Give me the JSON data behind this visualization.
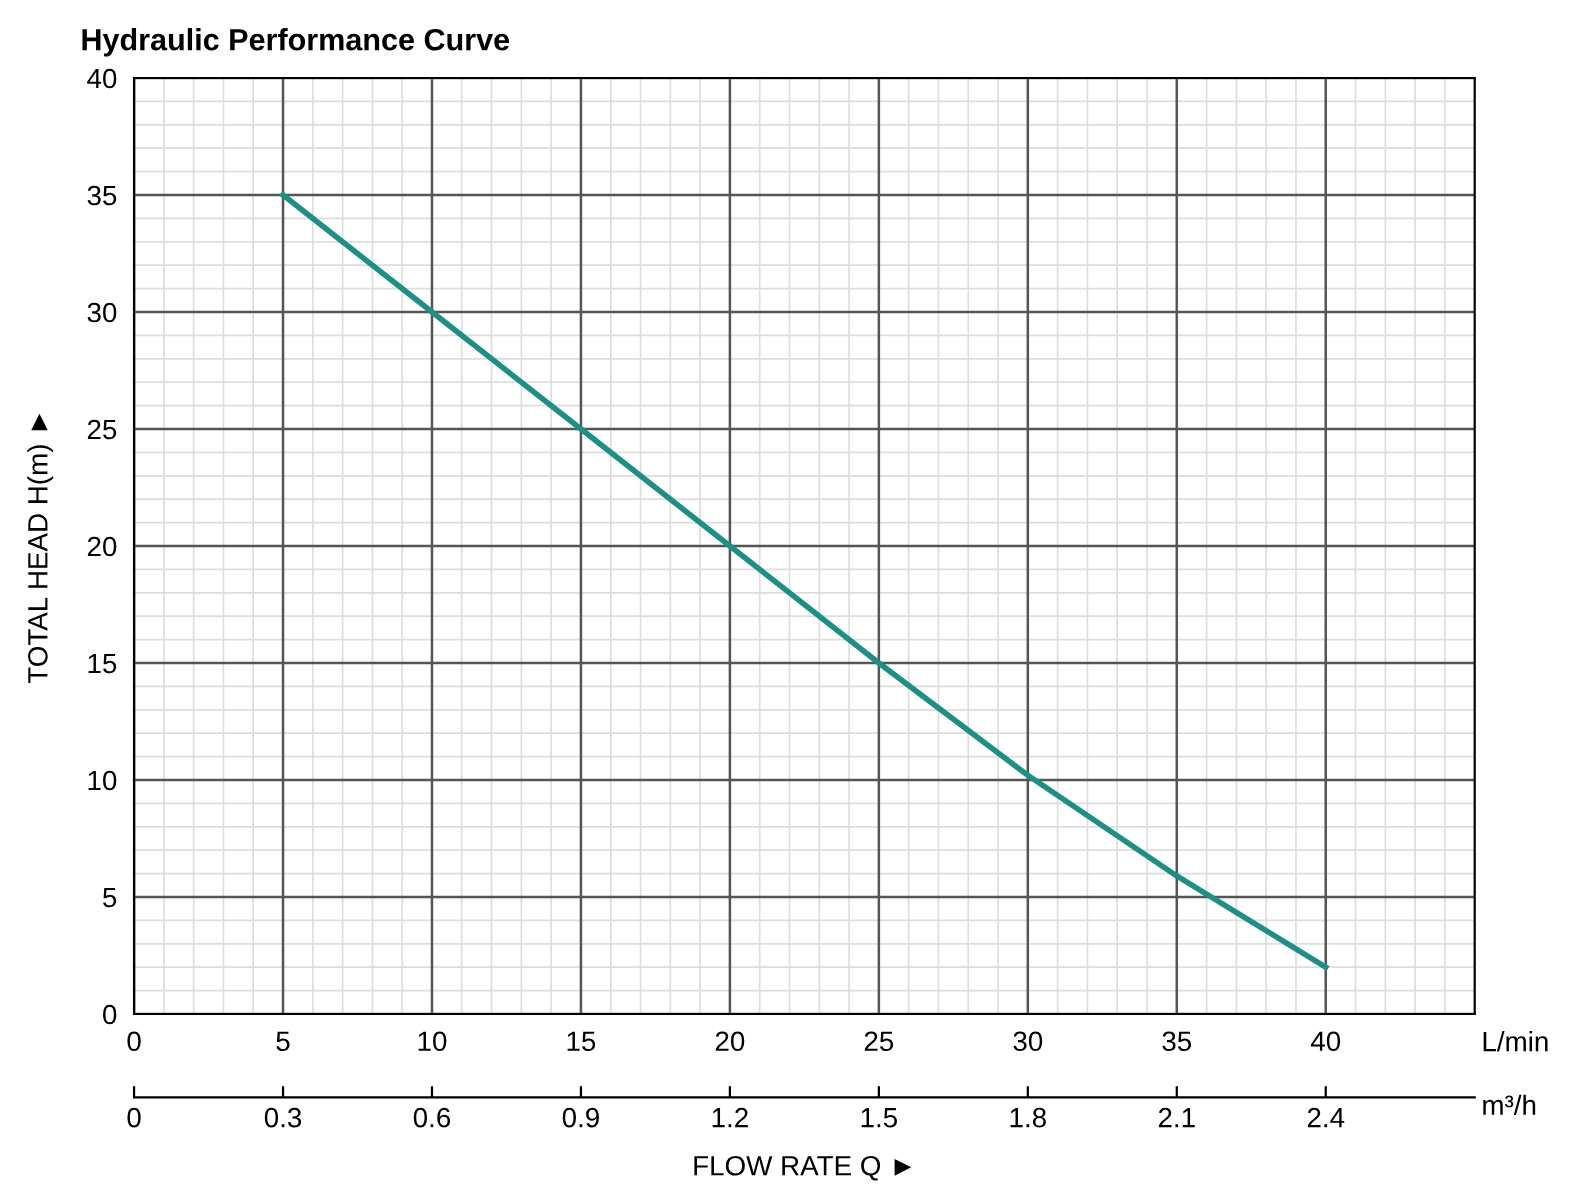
{
  "chart_data": {
    "type": "line",
    "title": "Hydraulic Performance Curve",
    "xlabel": "FLOW RATE Q ►",
    "ylabel": "TOTAL HEAD H(m) ►",
    "x": [
      5,
      10,
      15,
      20,
      25,
      30,
      35,
      40
    ],
    "series": [
      {
        "color": "#1f8f86",
        "values": [
          35,
          30,
          25,
          20,
          15,
          10.2,
          5.9,
          2.0
        ]
      }
    ],
    "xlim": [
      0,
      45
    ],
    "xticks": [
      0,
      5,
      10,
      15,
      20,
      25,
      30,
      35,
      40
    ],
    "ylim": [
      0,
      40
    ],
    "yticks": [
      0,
      5,
      10,
      15,
      20,
      25,
      30,
      35,
      40
    ],
    "x2lim": [
      0,
      2.7
    ],
    "x2ticks": [
      0,
      0.3,
      0.6,
      0.9,
      1.2,
      1.5,
      1.8,
      2.1,
      2.4
    ],
    "annotations": [
      "L/min",
      "m³/h"
    ],
    "grid": true,
    "marker": "none",
    "line_style": "solid"
  }
}
